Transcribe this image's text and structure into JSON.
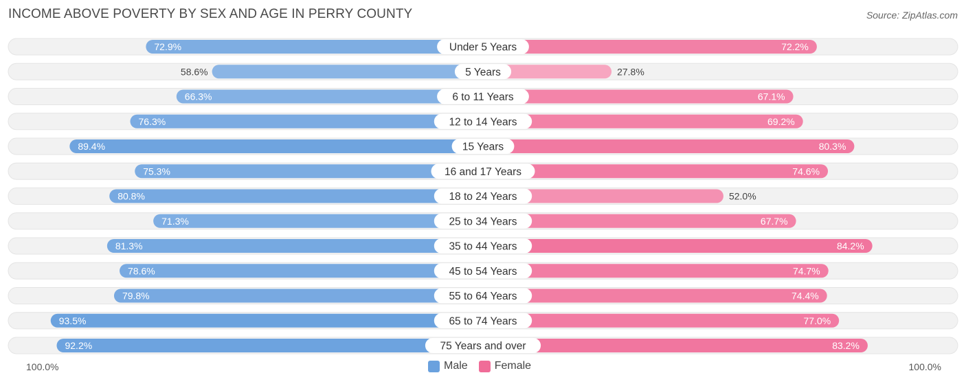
{
  "title": "INCOME ABOVE POVERTY BY SEX AND AGE IN PERRY COUNTY",
  "source": "Source: ZipAtlas.com",
  "colors": {
    "male_light": "#a9c8ec",
    "male_dark": "#6aa1de",
    "female_light": "#f7a8c2",
    "female_dark": "#f06c98",
    "track": "#f2f2f2"
  },
  "legend": {
    "male_label": "Male",
    "female_label": "Female"
  },
  "axis": {
    "left_label": "100.0%",
    "right_label": "100.0%"
  },
  "chart_data": {
    "type": "bar",
    "orientation": "horizontal-diverging",
    "title": "INCOME ABOVE POVERTY BY SEX AND AGE IN PERRY COUNTY",
    "xlim": [
      0,
      100
    ],
    "unit": "%",
    "categories": [
      "Under 5 Years",
      "5 Years",
      "6 to 11 Years",
      "12 to 14 Years",
      "15 Years",
      "16 and 17 Years",
      "18 to 24 Years",
      "25 to 34 Years",
      "35 to 44 Years",
      "45 to 54 Years",
      "55 to 64 Years",
      "65 to 74 Years",
      "75 Years and over"
    ],
    "series": [
      {
        "name": "Male",
        "values": [
          72.9,
          58.6,
          66.3,
          76.3,
          89.4,
          75.3,
          80.8,
          71.3,
          81.3,
          78.6,
          79.8,
          93.5,
          92.2
        ],
        "labels": [
          "72.9%",
          "58.6%",
          "66.3%",
          "76.3%",
          "89.4%",
          "75.3%",
          "80.8%",
          "71.3%",
          "81.3%",
          "78.6%",
          "79.8%",
          "93.5%",
          "92.2%"
        ]
      },
      {
        "name": "Female",
        "values": [
          72.2,
          27.8,
          67.1,
          69.2,
          80.3,
          74.6,
          52.0,
          67.7,
          84.2,
          74.7,
          74.4,
          77.0,
          83.2
        ],
        "labels": [
          "72.2%",
          "27.8%",
          "67.1%",
          "69.2%",
          "80.3%",
          "74.6%",
          "52.0%",
          "67.7%",
          "84.2%",
          "74.7%",
          "74.4%",
          "77.0%",
          "83.2%"
        ]
      }
    ]
  }
}
